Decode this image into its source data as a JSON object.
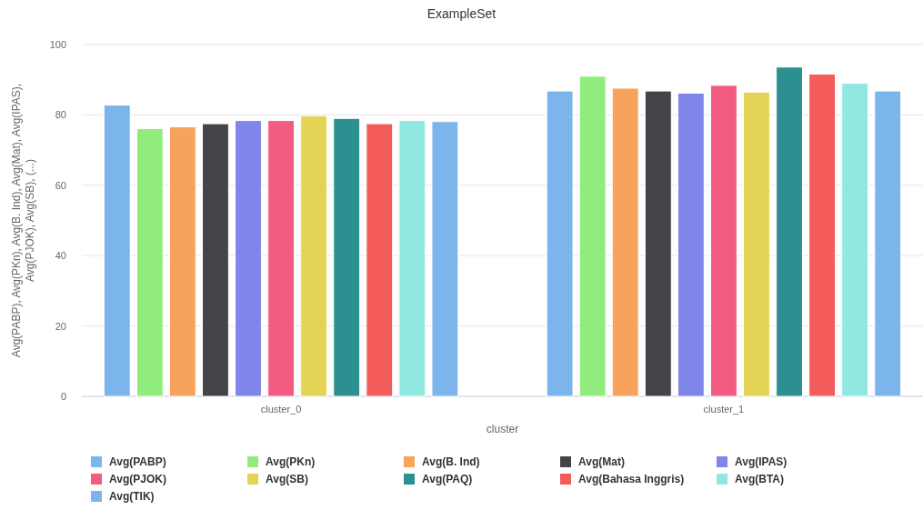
{
  "chart_data": {
    "type": "bar",
    "title": "ExampleSet",
    "xlabel": "cluster",
    "ylabel": "Avg(PABP), Avg(PKn), Avg(B. Ind), Avg(Mat), Avg(IPAS),\nAvg(PJOK), Avg(SB), (...)",
    "categories": [
      "cluster_0",
      "cluster_1"
    ],
    "ylim": [
      0,
      100
    ],
    "yticks": [
      0,
      20,
      40,
      60,
      80,
      100
    ],
    "grid": "y",
    "legend": "bottom",
    "series": [
      {
        "name": "Avg(PABP)",
        "color": "#7cb5ec",
        "values": [
          82.8,
          86.8
        ]
      },
      {
        "name": "Avg(PKn)",
        "color": "#90ed7d",
        "values": [
          76.1,
          91.0
        ]
      },
      {
        "name": "Avg(B. Ind)",
        "color": "#f7a35c",
        "values": [
          76.6,
          87.6
        ]
      },
      {
        "name": "Avg(Mat)",
        "color": "#434348",
        "values": [
          77.5,
          86.8
        ]
      },
      {
        "name": "Avg(IPAS)",
        "color": "#8085e9",
        "values": [
          78.4,
          86.2
        ]
      },
      {
        "name": "Avg(PJOK)",
        "color": "#f15c80",
        "values": [
          78.4,
          88.4
        ]
      },
      {
        "name": "Avg(SB)",
        "color": "#e4d354",
        "values": [
          79.7,
          86.5
        ]
      },
      {
        "name": "Avg(PAQ)",
        "color": "#2b908f",
        "values": [
          79.0,
          93.6
        ]
      },
      {
        "name": "Avg(Bahasa Inggris)",
        "color": "#f45b5b",
        "values": [
          77.5,
          91.6
        ]
      },
      {
        "name": "Avg(BTA)",
        "color": "#91e8e1",
        "values": [
          78.4,
          89.0
        ]
      },
      {
        "name": "Avg(TIK)",
        "color": "#7cb5ec",
        "values": [
          78.1,
          86.8
        ]
      }
    ]
  }
}
